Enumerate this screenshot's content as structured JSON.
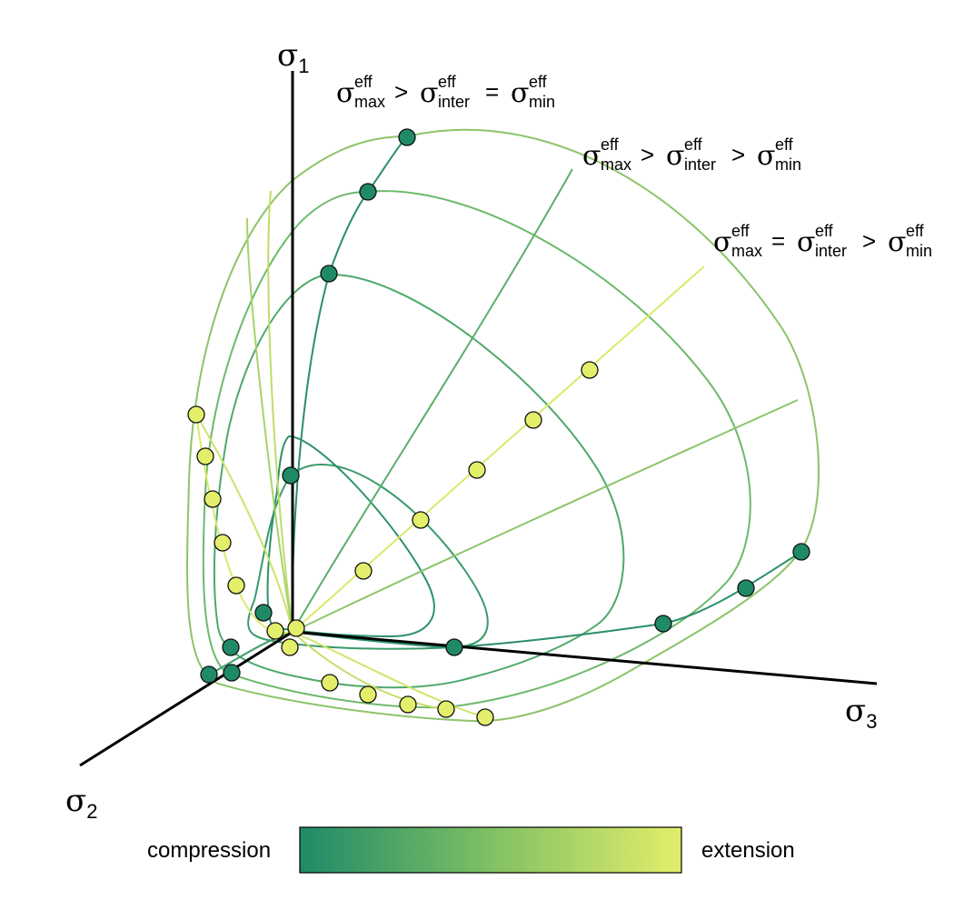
{
  "axes": {
    "sigma1": {
      "symbol": "σ",
      "subscript": "1"
    },
    "sigma2": {
      "symbol": "σ",
      "subscript": "2"
    },
    "sigma3": {
      "symbol": "σ",
      "subscript": "3"
    }
  },
  "annotations": [
    {
      "op1": ">",
      "op2": "="
    },
    {
      "op1": ">",
      "op2": ">"
    },
    {
      "op1": "=",
      "op2": ">"
    }
  ],
  "stress_symbols": {
    "sigma": "σ",
    "eff": "eff",
    "max": "max",
    "inter": "inter",
    "min": "min"
  },
  "legend": {
    "left_label": "compression",
    "right_label": "extension",
    "color_start": "#1f8a68",
    "color_end": "#e3ee6a"
  }
}
